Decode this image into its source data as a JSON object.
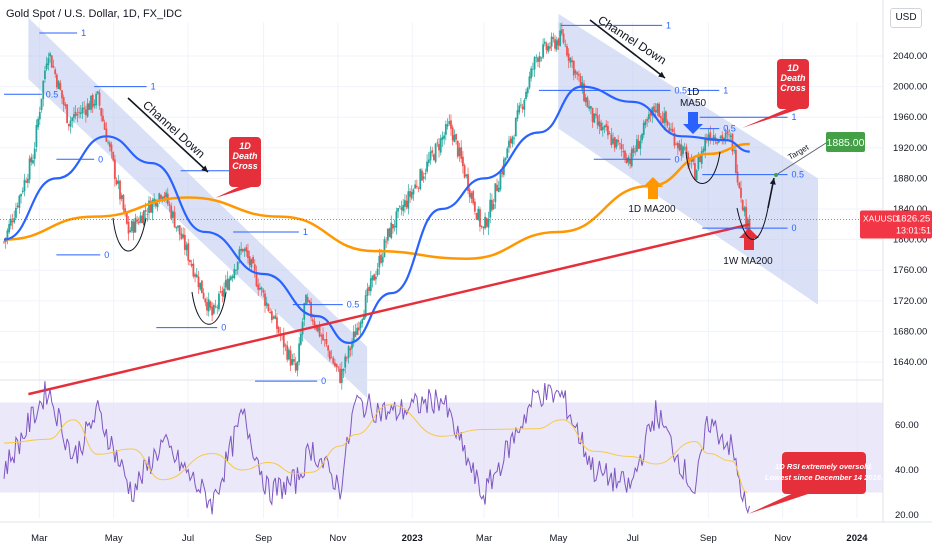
{
  "header": {
    "title": "Gold Spot / U.S. Dollar, 1D, FX_IDC",
    "currency_button": "USD"
  },
  "price_tag": {
    "symbol": "XAUUSD",
    "price": "1826.25",
    "countdown": "13:01:51",
    "color": "#f23645"
  },
  "annotations": {
    "channel_down_1": "Channel Down",
    "channel_down_2": "Channel Down",
    "death_cross_1": "1D\nDeath\nCross",
    "death_cross_2": "1D\nDeath\nCross",
    "ma50_label": "1D\nMA50",
    "ma200_label": "1D MA200",
    "w_ma200_label": "1W MA200",
    "target_label": "Target",
    "target_value": "1885.00",
    "rsi_note": "1D RSI extremely oversold.\nLowest since December 14 2016."
  },
  "colors": {
    "channel_fill": "#bcc8f0",
    "ma50": "#2962ff",
    "ma200": "#ff9800",
    "w_ma200": "#e5303b",
    "up_candle": "#26a69a",
    "down_candle": "#ef5350",
    "rsi_line": "#7e57c2",
    "rsi_ma": "#f7c948",
    "rsi_band": "#e3def7",
    "fib_line": "#2962ff",
    "callout_red": "#e5303b",
    "target_green": "#43a047"
  },
  "chart_data": {
    "type": "candlestick",
    "price_axis_labels": [
      "2040.00",
      "2000.00",
      "1960.00",
      "1920.00",
      "1880.00",
      "1840.00",
      "1800.00",
      "1760.00",
      "1720.00",
      "1680.00",
      "1640.00"
    ],
    "time_axis_labels": [
      "Mar",
      "May",
      "Jul",
      "Sep",
      "Nov",
      "2023",
      "Mar",
      "May",
      "Jul",
      "Sep",
      "Nov",
      "2024"
    ],
    "rsi_axis_labels": [
      "60.00",
      "40.00",
      "20.00"
    ],
    "price_anchors": [
      {
        "date": "2022-01-31",
        "close": 1797
      },
      {
        "date": "2022-02-24",
        "close": 1910
      },
      {
        "date": "2022-03-08",
        "close": 2050
      },
      {
        "date": "2022-03-25",
        "close": 1955
      },
      {
        "date": "2022-04-18",
        "close": 1985
      },
      {
        "date": "2022-05-13",
        "close": 1810
      },
      {
        "date": "2022-06-10",
        "close": 1865
      },
      {
        "date": "2022-07-21",
        "close": 1700
      },
      {
        "date": "2022-08-15",
        "close": 1790
      },
      {
        "date": "2022-09-28",
        "close": 1625
      },
      {
        "date": "2022-10-05",
        "close": 1720
      },
      {
        "date": "2022-11-03",
        "close": 1620
      },
      {
        "date": "2022-12-13",
        "close": 1810
      },
      {
        "date": "2023-02-01",
        "close": 1950
      },
      {
        "date": "2023-02-28",
        "close": 1810
      },
      {
        "date": "2023-04-13",
        "close": 2040
      },
      {
        "date": "2023-05-04",
        "close": 2065
      },
      {
        "date": "2023-05-30",
        "close": 1955
      },
      {
        "date": "2023-06-29",
        "close": 1905
      },
      {
        "date": "2023-07-20",
        "close": 1975
      },
      {
        "date": "2023-08-21",
        "close": 1888
      },
      {
        "date": "2023-09-01",
        "close": 1940
      },
      {
        "date": "2023-09-20",
        "close": 1930
      },
      {
        "date": "2023-10-03",
        "close": 1815
      },
      {
        "date": "2023-10-05",
        "close": 1826
      }
    ],
    "ma50": [
      {
        "date": "2022-01-31",
        "value": 1800
      },
      {
        "date": "2022-03-15",
        "value": 1880
      },
      {
        "date": "2022-04-25",
        "value": 1935
      },
      {
        "date": "2022-06-01",
        "value": 1900
      },
      {
        "date": "2022-07-15",
        "value": 1810
      },
      {
        "date": "2022-09-01",
        "value": 1755
      },
      {
        "date": "2022-10-15",
        "value": 1700
      },
      {
        "date": "2022-11-10",
        "value": 1665
      },
      {
        "date": "2022-12-15",
        "value": 1730
      },
      {
        "date": "2023-01-25",
        "value": 1840
      },
      {
        "date": "2023-03-01",
        "value": 1880
      },
      {
        "date": "2023-04-15",
        "value": 1940
      },
      {
        "date": "2023-05-20",
        "value": 2000
      },
      {
        "date": "2023-07-01",
        "value": 1980
      },
      {
        "date": "2023-08-10",
        "value": 1935
      },
      {
        "date": "2023-09-15",
        "value": 1930
      },
      {
        "date": "2023-10-05",
        "value": 1915
      }
    ],
    "ma200": [
      {
        "date": "2022-01-31",
        "value": 1800
      },
      {
        "date": "2022-04-15",
        "value": 1830
      },
      {
        "date": "2022-07-01",
        "value": 1855
      },
      {
        "date": "2022-09-15",
        "value": 1830
      },
      {
        "date": "2022-12-01",
        "value": 1785
      },
      {
        "date": "2023-02-15",
        "value": 1775
      },
      {
        "date": "2023-05-01",
        "value": 1810
      },
      {
        "date": "2023-07-15",
        "value": 1870
      },
      {
        "date": "2023-09-01",
        "value": 1912
      },
      {
        "date": "2023-10-05",
        "value": 1925
      }
    ],
    "w_ma200": [
      {
        "date": "2022-02-20",
        "value": 1598
      },
      {
        "date": "2023-10-05",
        "value": 1820
      }
    ],
    "rsi": [
      {
        "date": "2022-01-31",
        "value": 40
      },
      {
        "date": "2022-03-08",
        "value": 76
      },
      {
        "date": "2022-03-29",
        "value": 45
      },
      {
        "date": "2022-04-18",
        "value": 66
      },
      {
        "date": "2022-05-16",
        "value": 30
      },
      {
        "date": "2022-06-10",
        "value": 52
      },
      {
        "date": "2022-07-21",
        "value": 25
      },
      {
        "date": "2022-08-15",
        "value": 65
      },
      {
        "date": "2022-09-05",
        "value": 30
      },
      {
        "date": "2022-09-28",
        "value": 35
      },
      {
        "date": "2022-10-10",
        "value": 50
      },
      {
        "date": "2022-11-03",
        "value": 32
      },
      {
        "date": "2022-11-15",
        "value": 70
      },
      {
        "date": "2022-12-14",
        "value": 65
      },
      {
        "date": "2023-01-25",
        "value": 72
      },
      {
        "date": "2023-02-28",
        "value": 28
      },
      {
        "date": "2023-04-13",
        "value": 74
      },
      {
        "date": "2023-05-04",
        "value": 73
      },
      {
        "date": "2023-05-30",
        "value": 40
      },
      {
        "date": "2023-06-29",
        "value": 32
      },
      {
        "date": "2023-07-20",
        "value": 66
      },
      {
        "date": "2023-08-21",
        "value": 30
      },
      {
        "date": "2023-09-01",
        "value": 62
      },
      {
        "date": "2023-09-20",
        "value": 50
      },
      {
        "date": "2023-10-03",
        "value": 20
      }
    ],
    "ylim": [
      1600,
      2090
    ],
    "rsi_band": [
      30,
      70
    ],
    "fib_levels": [
      {
        "label": "1",
        "price": 2070,
        "from": "2022-03-01",
        "to": "2022-04-01"
      },
      {
        "label": "1",
        "price": 2000,
        "from": "2022-04-15",
        "to": "2022-05-28"
      },
      {
        "label": "0.5",
        "price": 1990,
        "from": "2022-01-31",
        "to": "2022-03-03"
      },
      {
        "label": "0",
        "price": 1905,
        "from": "2022-03-15",
        "to": "2022-04-15"
      },
      {
        "label": "0.5",
        "price": 1890,
        "from": "2022-06-25",
        "to": "2022-08-15"
      },
      {
        "label": "0",
        "price": 1780,
        "from": "2022-03-15",
        "to": "2022-04-20"
      },
      {
        "label": "1",
        "price": 1810,
        "from": "2022-08-07",
        "to": "2022-09-30"
      },
      {
        "label": "0.5",
        "price": 1715,
        "from": "2022-09-25",
        "to": "2022-11-05"
      },
      {
        "label": "0",
        "price": 1685,
        "from": "2022-06-05",
        "to": "2022-07-25"
      },
      {
        "label": "0",
        "price": 1615,
        "from": "2022-08-25",
        "to": "2022-10-15"
      },
      {
        "label": "1",
        "price": 2080,
        "from": "2023-05-03",
        "to": "2023-07-25"
      },
      {
        "label": "0.5",
        "price": 1995,
        "from": "2023-04-15",
        "to": "2023-08-01"
      },
      {
        "label": "1",
        "price": 1995,
        "from": "2023-08-15",
        "to": "2023-09-10"
      },
      {
        "label": "1",
        "price": 1960,
        "from": "2023-08-25",
        "to": "2023-11-05"
      },
      {
        "label": "0.5",
        "price": 1945,
        "from": "2023-08-25",
        "to": "2023-09-10"
      },
      {
        "label": "0",
        "price": 1905,
        "from": "2023-05-30",
        "to": "2023-08-01"
      },
      {
        "label": "0.5",
        "price": 1885,
        "from": "2023-08-27",
        "to": "2023-11-05"
      },
      {
        "label": "0",
        "price": 1815,
        "from": "2023-08-27",
        "to": "2023-11-05"
      }
    ]
  }
}
